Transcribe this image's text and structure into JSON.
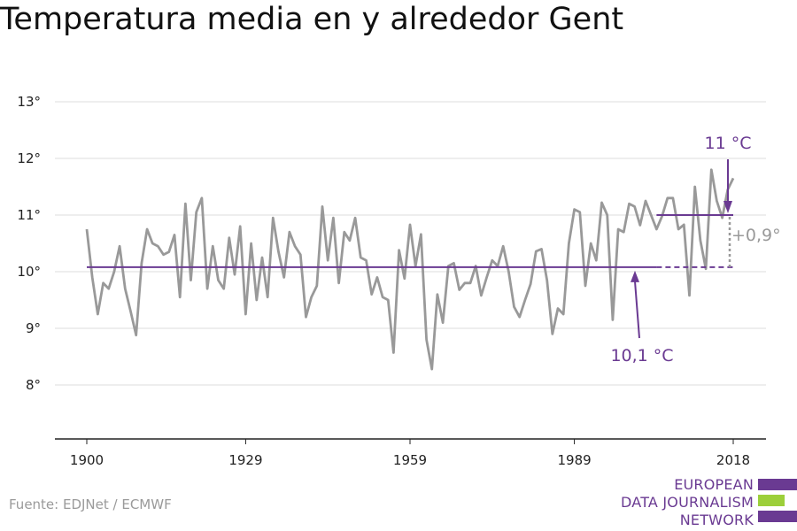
{
  "title": "Temperatura media en y alrededor Gent",
  "source": "Fuente: EDJNet / ECMWF",
  "logo": {
    "lines": [
      "EUROPEAN",
      "DATA JOURNALISM",
      "NETWORK"
    ],
    "colors": {
      "purple": "#6a3a92",
      "green": "#9ccf3a"
    }
  },
  "chart_data": {
    "type": "line",
    "title": "Temperatura media en y alrededor Gent",
    "xlabel": "",
    "ylabel": "",
    "xlim": [
      1900,
      2018
    ],
    "ylim": [
      7,
      13.5
    ],
    "x_ticks": [
      1900,
      1929,
      1959,
      1989,
      2018
    ],
    "y_ticks": [
      {
        "value": 8,
        "label": "8°"
      },
      {
        "value": 9,
        "label": "9°"
      },
      {
        "value": 10,
        "label": "10°"
      },
      {
        "value": 11,
        "label": "11°"
      },
      {
        "value": 12,
        "label": "12°"
      },
      {
        "value": 13,
        "label": "13°"
      }
    ],
    "grid": true,
    "series": [
      {
        "color": "#999999",
        "x": [
          1900,
          1901,
          1902,
          1903,
          1904,
          1905,
          1906,
          1907,
          1908,
          1909,
          1910,
          1911,
          1912,
          1913,
          1914,
          1915,
          1916,
          1917,
          1918,
          1919,
          1920,
          1921,
          1922,
          1923,
          1924,
          1925,
          1926,
          1927,
          1928,
          1929,
          1930,
          1931,
          1932,
          1933,
          1934,
          1935,
          1936,
          1937,
          1938,
          1939,
          1940,
          1941,
          1942,
          1943,
          1944,
          1945,
          1946,
          1947,
          1948,
          1949,
          1950,
          1951,
          1952,
          1953,
          1954,
          1955,
          1956,
          1957,
          1958,
          1959,
          1960,
          1961,
          1962,
          1963,
          1964,
          1965,
          1966,
          1967,
          1968,
          1969,
          1970,
          1971,
          1972,
          1973,
          1974,
          1975,
          1976,
          1977,
          1978,
          1979,
          1980,
          1981,
          1982,
          1983,
          1984,
          1985,
          1986,
          1987,
          1988,
          1989,
          1990,
          1991,
          1992,
          1993,
          1994,
          1995,
          1996,
          1997,
          1998,
          1999,
          2000,
          2001,
          2002,
          2003,
          2004,
          2005,
          2006,
          2007,
          2008,
          2009,
          2010,
          2011,
          2012,
          2013,
          2014,
          2015,
          2016,
          2017,
          2018
        ],
        "values": [
          10.75,
          9.9,
          9.25,
          9.8,
          9.7,
          10.0,
          10.45,
          9.7,
          9.3,
          8.88,
          10.15,
          10.75,
          10.5,
          10.45,
          10.3,
          10.35,
          10.65,
          9.55,
          11.2,
          9.85,
          11.05,
          11.3,
          9.7,
          10.45,
          9.85,
          9.7,
          10.6,
          9.95,
          10.8,
          9.25,
          10.5,
          9.5,
          10.25,
          9.55,
          10.95,
          10.35,
          9.9,
          10.7,
          10.45,
          10.3,
          9.2,
          9.55,
          9.75,
          11.15,
          10.2,
          10.95,
          9.8,
          10.7,
          10.55,
          10.95,
          10.25,
          10.2,
          9.6,
          9.9,
          9.55,
          9.5,
          8.57,
          10.38,
          9.88,
          10.83,
          10.1,
          10.66,
          8.8,
          8.28,
          9.6,
          9.1,
          10.1,
          10.15,
          9.68,
          9.8,
          9.8,
          10.1,
          9.58,
          9.9,
          10.2,
          10.1,
          10.45,
          10.0,
          9.38,
          9.2,
          9.5,
          9.78,
          10.36,
          10.4,
          9.85,
          8.9,
          9.35,
          9.25,
          10.5,
          11.1,
          11.05,
          9.75,
          10.5,
          10.2,
          11.22,
          11.0,
          9.15,
          10.75,
          10.7,
          11.2,
          11.15,
          10.82,
          11.25,
          11.0,
          10.75,
          10.98,
          11.3,
          11.3,
          10.75,
          10.83,
          9.58,
          11.5,
          10.55,
          10.05,
          11.8,
          11.25,
          10.95,
          11.45,
          11.65
        ]
      }
    ],
    "reference_lines": [
      {
        "label": "10,1 °C",
        "value": 10.08,
        "from": 1900,
        "to": 2018,
        "solid_until": 2004,
        "color": "#6a3a92"
      },
      {
        "label": "11 °C",
        "value": 11.0,
        "from": 2004,
        "to": 2018,
        "color": "#6a3a92"
      }
    ],
    "difference": {
      "label": "+0,9°",
      "color": "#999999"
    }
  }
}
